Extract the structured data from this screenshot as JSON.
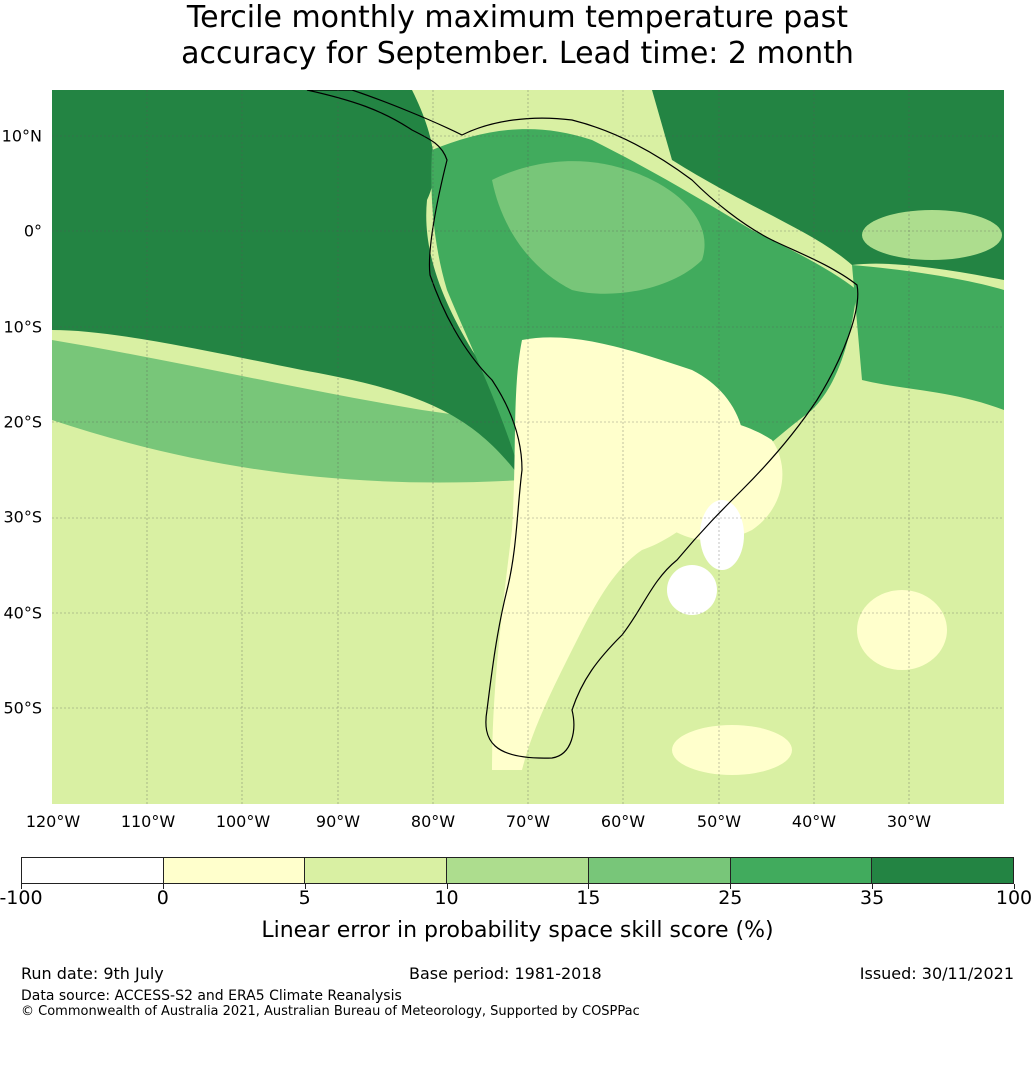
{
  "title_line1": "Tercile monthly maximum temperature past",
  "title_line2": "accuracy for September. Lead time: 2 month",
  "map": {
    "region": "South America",
    "lon_ticks": [
      "120°W",
      "110°W",
      "100°W",
      "90°W",
      "80°W",
      "70°W",
      "60°W",
      "50°W",
      "40°W",
      "30°W"
    ],
    "lat_ticks": [
      "10°N",
      "0°",
      "10°S",
      "20°S",
      "30°S",
      "40°S",
      "50°S"
    ],
    "lon_range": [
      -125,
      -25
    ],
    "lat_range": [
      15,
      -60
    ]
  },
  "colorbar": {
    "ticks": [
      "-100",
      "0",
      "5",
      "10",
      "15",
      "25",
      "35",
      "100"
    ],
    "colors": [
      "#ffffff",
      "#ffffcc",
      "#d9f0a3",
      "#addd8e",
      "#78c679",
      "#41ab5d",
      "#238443"
    ],
    "label": "Linear error in probability space skill score (%)"
  },
  "footer": {
    "run_date": "Run date: 9th July",
    "base_period": "Base period: 1981-2018",
    "issued": "Issued: 30/11/2021",
    "data_source": "Data source: ACCESS-S2 and ERA5 Climate Reanalysis",
    "copyright": "© Commonwealth of Australia 2021, Australian Bureau of Meteorology, Supported by COSPPac"
  }
}
